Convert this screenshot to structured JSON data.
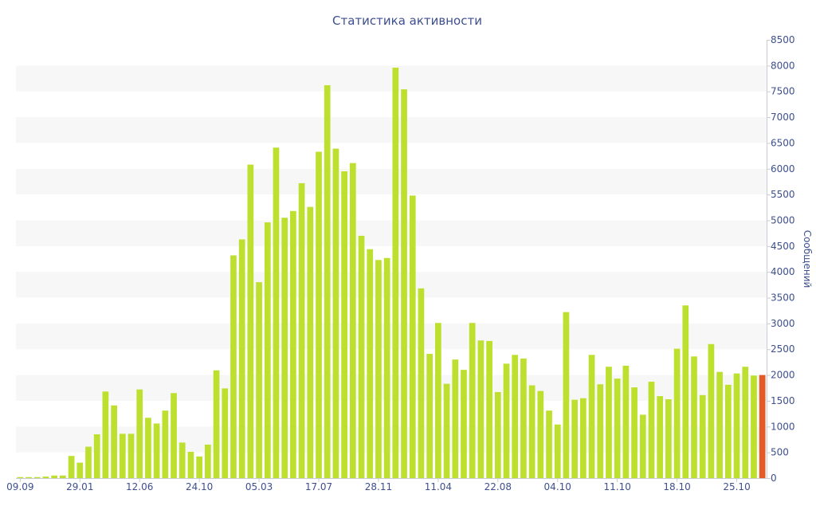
{
  "chart_data": {
    "type": "bar",
    "title": "Статистика активности",
    "ylabel": "Сообщений",
    "xlabel": "",
    "ylim": [
      0,
      8500
    ],
    "y_ticks": [
      0,
      500,
      1000,
      1500,
      2000,
      2500,
      3000,
      3500,
      4000,
      4500,
      5000,
      5500,
      6000,
      6500,
      7000,
      7500,
      8000,
      8500
    ],
    "y_axis_position": "right",
    "grid": "alternating horizontal bands",
    "x_tick_labels": [
      {
        "index": 0,
        "label": "09.09"
      },
      {
        "index": 7,
        "label": "29.01"
      },
      {
        "index": 14,
        "label": "12.06"
      },
      {
        "index": 21,
        "label": "24.10"
      },
      {
        "index": 28,
        "label": "05.03"
      },
      {
        "index": 35,
        "label": "17.07"
      },
      {
        "index": 42,
        "label": "28.11"
      },
      {
        "index": 49,
        "label": "11.04"
      },
      {
        "index": 56,
        "label": "22.08"
      },
      {
        "index": 63,
        "label": "04.10"
      },
      {
        "index": 70,
        "label": "11.10"
      },
      {
        "index": 77,
        "label": "18.10"
      },
      {
        "index": 84,
        "label": "25.10"
      }
    ],
    "values": [
      20,
      20,
      20,
      30,
      50,
      50,
      430,
      300,
      610,
      850,
      1680,
      1410,
      860,
      860,
      1720,
      1170,
      1060,
      1310,
      1650,
      690,
      510,
      420,
      650,
      2090,
      1740,
      4320,
      4630,
      6080,
      3800,
      4960,
      6410,
      5050,
      5180,
      5720,
      5260,
      6330,
      7620,
      6390,
      5950,
      6110,
      4700,
      4440,
      4230,
      4270,
      7960,
      7540,
      5480,
      3680,
      2410,
      3010,
      1830,
      2300,
      2100,
      3010,
      2670,
      2660,
      1670,
      2220,
      2390,
      2320,
      1800,
      1690,
      1310,
      1040,
      3220,
      1520,
      1550,
      2390,
      1820,
      2160,
      1930,
      2180,
      1760,
      1230,
      1870,
      1590,
      1530,
      2510,
      3350,
      2360,
      1610,
      2600,
      2060,
      1810,
      2030,
      2160,
      1990,
      2000
    ],
    "highlight_last": true,
    "colors": {
      "bar": "#bde02f",
      "bar_highlight": "#e25b25",
      "text": "#3d4f8f",
      "band": "#f7f7f7",
      "axis": "#c9ccd6"
    }
  }
}
